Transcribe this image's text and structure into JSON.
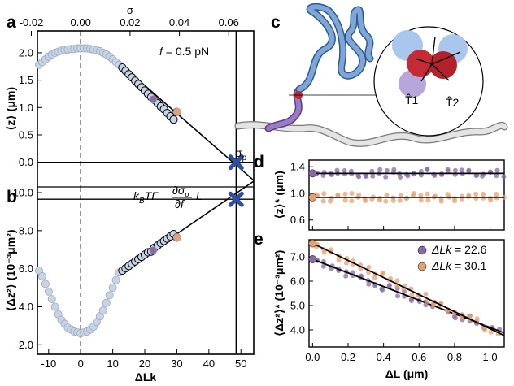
{
  "panel_labels": {
    "a": "a",
    "b": "b",
    "c": "c",
    "d": "d",
    "e": "e"
  },
  "chart_data": [
    {
      "id": "a",
      "type": "scatter",
      "x_axis_bottom": {
        "ticks": [
          -10,
          0,
          10,
          20,
          30,
          40,
          50
        ],
        "range": [
          -13.5,
          54
        ]
      },
      "x_axis_top": {
        "label": "σ",
        "ticks": [
          "-0.02",
          "0.00",
          "0.02",
          "0.04",
          "0.06"
        ],
        "tick_values": [
          -0.02,
          0.0,
          0.02,
          0.04,
          0.06
        ]
      },
      "ylabel": "⟨z⟩ (μm)",
      "ylim": [
        -0.45,
        2.4
      ],
      "yticks": [
        "0.0",
        "0.5",
        "1.0",
        "1.5",
        "2.0"
      ],
      "ytick_values": [
        0.0,
        0.5,
        1.0,
        1.5,
        2.0
      ],
      "annotation": "f = 0.5 pN",
      "sigma_p_label": "σp",
      "series": [
        {
          "color": "#c8d4e6",
          "x": [
            -13,
            -12,
            -11,
            -10,
            -9,
            -8,
            -7,
            -6,
            -5,
            -4,
            -3,
            -2,
            -1,
            0,
            1,
            2,
            3,
            4,
            5,
            6,
            7,
            8,
            9,
            10,
            11,
            12
          ],
          "y": [
            1.78,
            1.83,
            1.88,
            1.93,
            1.97,
            2.0,
            2.02,
            2.04,
            2.05,
            2.06,
            2.07,
            2.07,
            2.08,
            2.08,
            2.08,
            2.08,
            2.07,
            2.06,
            2.05,
            2.03,
            2.0,
            1.97,
            1.93,
            1.88,
            1.83,
            1.78
          ]
        },
        {
          "color": "#c8d4e6",
          "x": [
            13,
            14,
            15,
            16,
            17,
            18,
            19,
            20,
            21,
            22,
            23,
            24,
            25,
            26,
            27,
            28,
            29,
            30
          ],
          "y": [
            1.73,
            1.67,
            1.61,
            1.55,
            1.49,
            1.43,
            1.37,
            1.31,
            1.25,
            1.19,
            1.14,
            1.08,
            1.02,
            0.97,
            0.9,
            0.84,
            0.78,
            0.92
          ]
        },
        {
          "color": "#8a6aa6",
          "x": [
            22.6
          ],
          "y": [
            1.15
          ]
        },
        {
          "color": "#e8a070",
          "x": [
            30.1
          ],
          "y": [
            0.92
          ]
        }
      ],
      "fit_line": {
        "x": [
          12,
          54
        ],
        "y": [
          1.81,
          -0.33
        ]
      },
      "hline_y": 0.0,
      "vline_x": 48.5,
      "dashed_x": 0,
      "marker_cross": {
        "x": 48.5,
        "y": 0.0
      }
    },
    {
      "id": "b",
      "type": "scatter",
      "x_axis": {
        "label": "ΔLk",
        "ticks": [
          -10,
          0,
          10,
          20,
          30,
          40,
          50
        ],
        "range": [
          -13.5,
          54
        ]
      },
      "ylabel": "⟨Δz²⟩ (10⁻³μm²)",
      "ylim": [
        1.5,
        10.3
      ],
      "yticks": [
        "2.0",
        "4.0",
        "6.0",
        "8.0",
        "10.0"
      ],
      "ytick_values": [
        2.0,
        4.0,
        6.0,
        8.0,
        10.0
      ],
      "annotation_text": [
        "kBTΓ",
        "∂σp",
        "∂f",
        "L"
      ],
      "series": [
        {
          "color": "#c8d4e6",
          "x": [
            -13,
            -12,
            -11,
            -10,
            -9,
            -8,
            -7,
            -6,
            -5,
            -4,
            -3,
            -2,
            -1,
            0,
            1,
            2,
            3,
            4,
            5,
            6,
            7,
            8,
            9,
            10,
            11,
            12
          ],
          "y": [
            5.9,
            5.6,
            5.2,
            4.8,
            4.4,
            4.0,
            3.6,
            3.3,
            3.1,
            2.9,
            2.8,
            2.7,
            2.65,
            2.6,
            2.65,
            2.7,
            2.8,
            2.95,
            3.2,
            3.5,
            3.8,
            4.2,
            4.6,
            5.0,
            5.4,
            5.8
          ]
        },
        {
          "color": "#c8d4e6",
          "x": [
            13,
            14,
            15,
            16,
            17,
            18,
            19,
            20,
            21,
            22,
            23,
            24,
            25,
            26,
            27,
            28,
            29,
            30
          ],
          "y": [
            5.9,
            6.02,
            6.14,
            6.26,
            6.38,
            6.5,
            6.62,
            6.74,
            6.86,
            6.9,
            7.1,
            7.22,
            7.34,
            7.46,
            7.58,
            7.7,
            7.82,
            7.64
          ]
        },
        {
          "color": "#8a6aa6",
          "x": [
            22.6
          ],
          "y": [
            6.96
          ]
        },
        {
          "color": "#e8a070",
          "x": [
            30.1
          ],
          "y": [
            7.64
          ]
        }
      ],
      "fit_line": {
        "x": [
          12,
          54
        ],
        "y": [
          5.75,
          10.6
        ]
      },
      "hline_y": 9.65,
      "vline_x": 48.5,
      "dashed_x": 0,
      "marker_cross": {
        "x": 48.5,
        "y": 9.65
      }
    },
    {
      "id": "d",
      "type": "scatter",
      "xlim": [
        -0.02,
        1.08
      ],
      "ylabel": "⟨z⟩* (μm)",
      "ylim": [
        0.45,
        1.5
      ],
      "yticks": [
        "0.6",
        "1.0",
        "1.4"
      ],
      "ytick_values": [
        0.6,
        1.0,
        1.4
      ],
      "series": [
        {
          "name": "ΔLk = 22.6",
          "color": "#8a6aa6",
          "mean": 1.3
        },
        {
          "name": "ΔLk = 30.1",
          "color": "#e8a070",
          "mean": 0.94
        }
      ]
    },
    {
      "id": "e",
      "type": "scatter",
      "x_axis": {
        "label": "ΔL (μm)",
        "ticks": [
          "0.0",
          "0.2",
          "0.4",
          "0.6",
          "0.8",
          "1.0"
        ],
        "tick_values": [
          0.0,
          0.2,
          0.4,
          0.6,
          0.8,
          1.0
        ]
      },
      "xlim": [
        -0.02,
        1.08
      ],
      "ylabel": "⟨Δz²⟩* (10⁻³μm²)",
      "ylim": [
        3.3,
        7.7
      ],
      "yticks": [
        "4.0",
        "5.0",
        "6.0",
        "7.0"
      ],
      "ytick_values": [
        4.0,
        5.0,
        6.0,
        7.0
      ],
      "legend": {
        "placement": "top-right"
      },
      "series": [
        {
          "name": "ΔLk",
          "value_label": "= 22.6",
          "color": "#8a6aa6",
          "fit": [
            6.9,
            -2.8
          ],
          "start_y": 6.9
        },
        {
          "name": "ΔLk",
          "value_label": "= 30.1",
          "color": "#e8a070",
          "fit": [
            7.55,
            -3.5
          ],
          "start_y": 7.55
        }
      ]
    }
  ],
  "illustration_c": {
    "labels": [
      "T̂1",
      "T̂2"
    ]
  }
}
